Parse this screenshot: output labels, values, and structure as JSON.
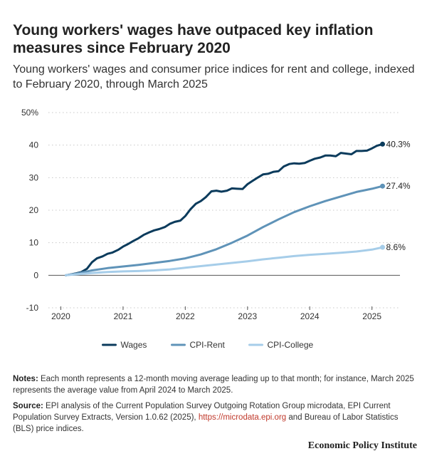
{
  "chart_data": {
    "type": "line",
    "title": "Young workers' wages have outpaced key inflation measures since February 2020",
    "subtitle": "Young workers' wages and consumer price indices for rent and college, indexed to February 2020, through March 2025",
    "x_ticks": [
      "2020",
      "2021",
      "2022",
      "2023",
      "2024",
      "2025"
    ],
    "y_ticks": [
      "-10",
      "0",
      "10",
      "20",
      "30",
      "40",
      "50%"
    ],
    "ylim": [
      -10,
      50
    ],
    "xlim": [
      2019.8,
      2025.45
    ],
    "grid": true,
    "legend_position": "bottom-center",
    "series": [
      {
        "name": "Wages",
        "color": "#0b3b5c",
        "end_label": "40.3%",
        "x": [
          2020.08,
          2020.17,
          2020.25,
          2020.33,
          2020.42,
          2020.5,
          2020.58,
          2020.67,
          2020.75,
          2020.83,
          2020.92,
          2021.0,
          2021.08,
          2021.17,
          2021.25,
          2021.33,
          2021.42,
          2021.5,
          2021.58,
          2021.67,
          2021.75,
          2021.83,
          2021.92,
          2022.0,
          2022.08,
          2022.17,
          2022.25,
          2022.33,
          2022.42,
          2022.5,
          2022.58,
          2022.67,
          2022.75,
          2022.83,
          2022.92,
          2023.0,
          2023.08,
          2023.17,
          2023.25,
          2023.33,
          2023.42,
          2023.5,
          2023.58,
          2023.67,
          2023.75,
          2023.83,
          2023.92,
          2024.0,
          2024.08,
          2024.17,
          2024.25,
          2024.33,
          2024.42,
          2024.5,
          2024.58,
          2024.67,
          2024.75,
          2024.83,
          2024.92,
          2025.0,
          2025.08,
          2025.17
        ],
        "values": [
          0,
          0.3,
          0.6,
          1.0,
          2.0,
          4.0,
          5.2,
          5.8,
          6.6,
          7.0,
          7.8,
          8.8,
          9.6,
          10.6,
          11.4,
          12.4,
          13.2,
          13.8,
          14.2,
          14.8,
          15.8,
          16.4,
          16.8,
          18.2,
          20.2,
          22.0,
          22.8,
          24.0,
          25.8,
          26.0,
          25.7,
          26.0,
          26.7,
          26.6,
          26.5,
          28.0,
          29.0,
          30.1,
          31.0,
          31.2,
          31.8,
          32.0,
          33.4,
          34.2,
          34.4,
          34.3,
          34.5,
          35.2,
          35.8,
          36.2,
          36.8,
          36.8,
          36.6,
          37.6,
          37.4,
          37.2,
          38.2,
          38.2,
          38.3,
          39.0,
          39.8,
          40.3
        ]
      },
      {
        "name": "CPI-Rent",
        "color": "#5f93b8",
        "end_label": "27.4%",
        "x": [
          2020.08,
          2020.25,
          2020.5,
          2020.75,
          2021.0,
          2021.25,
          2021.5,
          2021.75,
          2022.0,
          2022.25,
          2022.5,
          2022.75,
          2023.0,
          2023.25,
          2023.5,
          2023.75,
          2024.0,
          2024.25,
          2024.5,
          2024.75,
          2025.0,
          2025.17
        ],
        "values": [
          0,
          0.5,
          1.5,
          2.2,
          2.7,
          3.2,
          3.8,
          4.4,
          5.2,
          6.4,
          8.0,
          10.0,
          12.2,
          14.8,
          17.2,
          19.4,
          21.2,
          22.8,
          24.2,
          25.6,
          26.6,
          27.4
        ]
      },
      {
        "name": "CPI-College",
        "color": "#a6cde9",
        "end_label": "8.6%",
        "x": [
          2020.08,
          2020.25,
          2020.5,
          2020.75,
          2021.0,
          2021.25,
          2021.5,
          2021.75,
          2022.0,
          2022.25,
          2022.5,
          2022.75,
          2023.0,
          2023.25,
          2023.5,
          2023.75,
          2024.0,
          2024.25,
          2024.5,
          2024.75,
          2025.0,
          2025.17
        ],
        "values": [
          0,
          0.3,
          0.7,
          1.0,
          1.2,
          1.3,
          1.5,
          1.8,
          2.3,
          2.8,
          3.3,
          3.8,
          4.3,
          4.9,
          5.4,
          5.9,
          6.3,
          6.6,
          6.9,
          7.3,
          7.9,
          8.6
        ]
      }
    ]
  },
  "notes": {
    "label": "Notes:",
    "text": " Each month represents a 12-month moving average leading up to that month; for instance, March 2025 represents the average value from April 2024 to March 2025."
  },
  "source": {
    "label": "Source:",
    "text_before": " EPI analysis of the Current Population Survey Outgoing Rotation Group microdata, EPI Current Population Survey Extracts, Version 1.0.62 (2025), ",
    "link": "https://microdata.epi.org",
    "text_after": " and Bureau of Labor Statistics (BLS) price indices."
  },
  "brand": "Economic Policy Institute"
}
